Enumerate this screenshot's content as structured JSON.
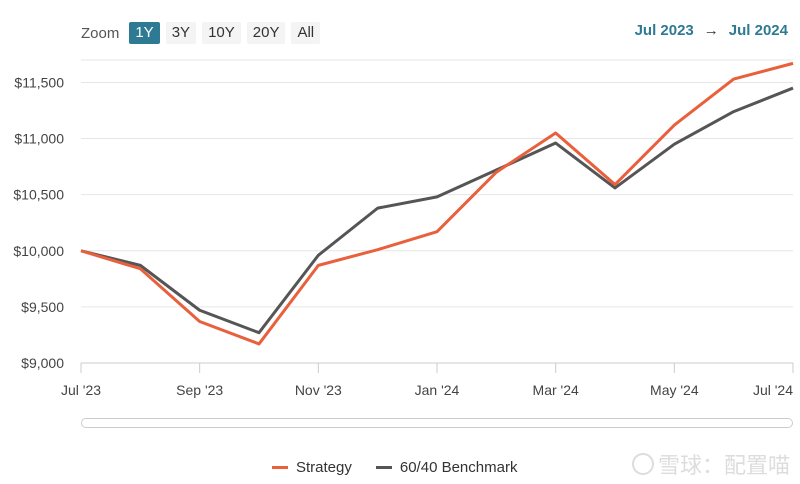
{
  "zoom": {
    "label": "Zoom",
    "options": [
      "1Y",
      "3Y",
      "10Y",
      "20Y",
      "All"
    ],
    "selected": "1Y"
  },
  "range": {
    "from": "Jul 2023",
    "arrow": "→",
    "to": "Jul 2024"
  },
  "watermark": "雪球：配置喵",
  "colors": {
    "strategy": "#e8603c",
    "benchmark": "#555555",
    "accent": "#2e7a93"
  },
  "chart_data": {
    "type": "line",
    "title": "",
    "xlabel": "",
    "ylabel": "",
    "ylim": [
      9000,
      11700
    ],
    "y_ticks": [
      "$9,000",
      "$9,500",
      "$10,000",
      "$10,500",
      "$11,000",
      "$11,500"
    ],
    "y_tick_values": [
      9000,
      9500,
      10000,
      10500,
      11000,
      11500
    ],
    "x": [
      "2023-07",
      "2023-08",
      "2023-09",
      "2023-10",
      "2023-11",
      "2023-12",
      "2024-01",
      "2024-02",
      "2024-03",
      "2024-04",
      "2024-05",
      "2024-06",
      "2024-07"
    ],
    "x_tick_labels": [
      "Jul '23",
      "Sep '23",
      "Nov '23",
      "Jan '24",
      "Mar '24",
      "May '24",
      "Jul '24"
    ],
    "x_tick_positions": [
      "2023-07",
      "2023-09",
      "2023-11",
      "2024-01",
      "2024-03",
      "2024-05",
      "2024-07"
    ],
    "series": [
      {
        "name": "Strategy",
        "values": [
          10000,
          9840,
          9370,
          9170,
          9870,
          10010,
          10170,
          10700,
          11050,
          10590,
          11120,
          11530,
          11670
        ]
      },
      {
        "name": "60/40 Benchmark",
        "values": [
          10000,
          9870,
          9470,
          9270,
          9960,
          10380,
          10480,
          10720,
          10960,
          10560,
          10950,
          11240,
          11450
        ]
      }
    ],
    "grid": true,
    "legend": "bottom-center"
  }
}
